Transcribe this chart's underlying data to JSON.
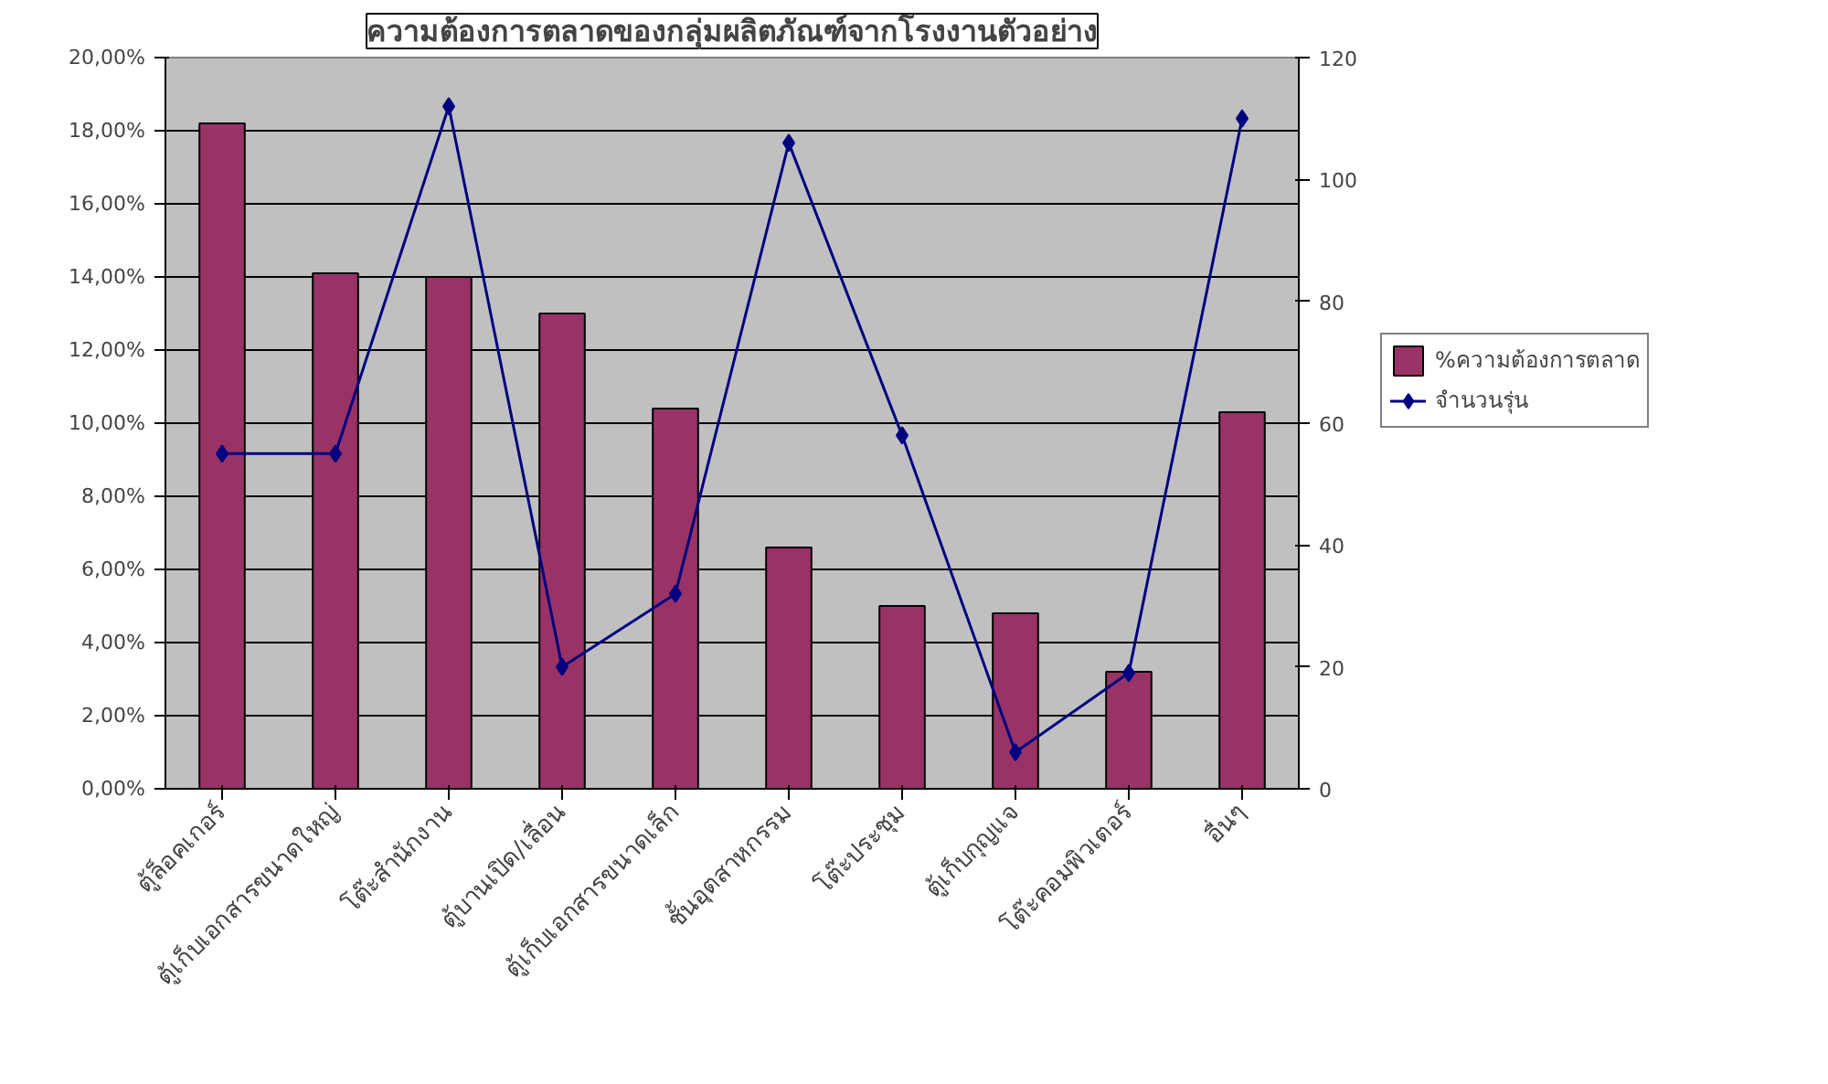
{
  "chart_data": {
    "type": "bar",
    "title": "ความต้องการตลาดของกลุ่มผลิตภัณฑ์จากโรงงานตัวอย่าง",
    "categories": [
      "ตู้ล็อคเกอร์",
      "ตู้เก็บเอกสารขนาดใหญ่",
      "โต๊ะสำนักงาน",
      "ตู้บานเปิด/เลื่อน",
      "ตู้เก็บเอกสารขนาดเล็ก",
      "ชั้นอุตสาหกรรม",
      "โต๊ะประชุม",
      "ตู้เก็บกุญแจ",
      "โต๊ะคอมพิวเตอร์",
      "อื่นๆ"
    ],
    "series": [
      {
        "name": "%ความต้องการตลาด",
        "color": "#993366",
        "values": [
          18.2,
          14.1,
          14.0,
          13.0,
          10.4,
          6.6,
          5.0,
          4.8,
          3.2,
          10.3
        ]
      },
      {
        "name": "จำนวนรุ่น",
        "type": "line",
        "axis": "y2",
        "color": "#000080",
        "marker": "diamond",
        "values": [
          55,
          55,
          112,
          20,
          32,
          106,
          58,
          6,
          19,
          110
        ]
      }
    ],
    "ylim": [
      0,
      20
    ],
    "yticks": [
      {
        "value": 0,
        "label": "0,00%"
      },
      {
        "value": 2,
        "label": "2,00%"
      },
      {
        "value": 4,
        "label": "4,00%"
      },
      {
        "value": 6,
        "label": "6,00%"
      },
      {
        "value": 8,
        "label": "8,00%"
      },
      {
        "value": 10,
        "label": "10,00%"
      },
      {
        "value": 12,
        "label": "12,00%"
      },
      {
        "value": 14,
        "label": "14,00%"
      },
      {
        "value": 16,
        "label": "16,00%"
      },
      {
        "value": 18,
        "label": "18,00%"
      },
      {
        "value": 20,
        "label": "20,00%"
      }
    ],
    "y2lim": [
      0,
      120
    ],
    "y2ticks": [
      0,
      20,
      40,
      60,
      80,
      100,
      120
    ],
    "grid": "y",
    "legend": "right"
  }
}
